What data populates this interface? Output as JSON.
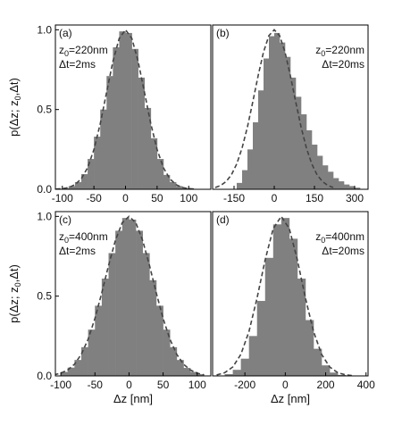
{
  "chart_data": [
    {
      "type": "histogram",
      "panel": "(a)",
      "z_label": {
        "text": "z",
        "sub": "0",
        "rest": "=220nm"
      },
      "dt_label": "Δt=2ms",
      "ylabel": {
        "before": "p(Δz; z",
        "sub": "0",
        "after": ",Δt)"
      },
      "bins": [
        -100,
        -90,
        -80,
        -70,
        -60,
        -50,
        -40,
        -30,
        -20,
        -10,
        0,
        10,
        20,
        30,
        40,
        50,
        60,
        70,
        80,
        90,
        100,
        110
      ],
      "values": [
        0.007,
        0.02,
        0.045,
        0.095,
        0.19,
        0.33,
        0.5,
        0.71,
        0.89,
        0.99,
        0.98,
        0.88,
        0.7,
        0.51,
        0.32,
        0.19,
        0.09,
        0.045,
        0.02,
        0.008,
        0.003
      ],
      "fit_x": [
        -110,
        -100,
        -90,
        -80,
        -70,
        -60,
        -50,
        -40,
        -30,
        -20,
        -10,
        0,
        10,
        20,
        30,
        40,
        50,
        60,
        70,
        80,
        90,
        100,
        110
      ],
      "fit_values": [
        0.001,
        0.004,
        0.011,
        0.029,
        0.066,
        0.135,
        0.249,
        0.411,
        0.607,
        0.801,
        0.946,
        1,
        0.946,
        0.801,
        0.607,
        0.411,
        0.249,
        0.135,
        0.066,
        0.029,
        0.011,
        0.004,
        0.001
      ],
      "color": "#808080",
      "fit_color": "#444444",
      "xlim": [
        -111,
        135
      ],
      "xticks": [
        -100,
        -50,
        0,
        50,
        100
      ],
      "ylim": [
        0,
        1.03
      ],
      "yticks": [
        {
          "value": 0,
          "label": "0.0"
        },
        {
          "value": 0.5,
          "label": "0.5"
        },
        {
          "value": 1,
          "label": "1.0"
        }
      ]
    },
    {
      "type": "histogram",
      "panel": "(b)",
      "z_label": {
        "text": "z",
        "sub": "0",
        "rest": "=220nm"
      },
      "dt_label": "Δt=20ms",
      "bins": [
        -140,
        -120,
        -100,
        -80,
        -60,
        -40,
        -20,
        0,
        20,
        40,
        60,
        80,
        100,
        120,
        140,
        160,
        180,
        200,
        220,
        240,
        260,
        280,
        300,
        320
      ],
      "values": [
        0.04,
        0.12,
        0.25,
        0.42,
        0.62,
        0.82,
        0.96,
        0.98,
        0.92,
        0.83,
        0.7,
        0.58,
        0.47,
        0.37,
        0.28,
        0.21,
        0.15,
        0.11,
        0.07,
        0.05,
        0.03,
        0.02,
        0.01
      ],
      "fit_x": [
        -220,
        -200,
        -180,
        -160,
        -140,
        -120,
        -100,
        -80,
        -60,
        -40,
        -20,
        0,
        20,
        40,
        60,
        80,
        100,
        120,
        140,
        160,
        180,
        200,
        220
      ],
      "fit_values": [
        0.011,
        0.024,
        0.048,
        0.09,
        0.159,
        0.259,
        0.391,
        0.549,
        0.713,
        0.861,
        0.963,
        1,
        0.963,
        0.861,
        0.713,
        0.549,
        0.391,
        0.259,
        0.159,
        0.09,
        0.048,
        0.024,
        0.011
      ],
      "color": "#808080",
      "fit_color": "#444444",
      "xlim": [
        -230,
        350
      ],
      "xticks": [
        -150,
        0,
        150,
        300
      ],
      "ylim": [
        0,
        1.03
      ]
    },
    {
      "type": "histogram",
      "panel": "(c)",
      "z_label": {
        "text": "z",
        "sub": "0",
        "rest": "=400nm"
      },
      "dt_label": "Δt=2ms",
      "ylabel": {
        "before": "p(Δz; z",
        "sub": "0",
        "after": ",Δt)"
      },
      "xlabel": "Δz [nm]",
      "bins": [
        -100,
        -90,
        -80,
        -70,
        -60,
        -50,
        -40,
        -30,
        -20,
        -10,
        0,
        10,
        20,
        30,
        40,
        50,
        60,
        70,
        80,
        90,
        100,
        110
      ],
      "values": [
        0.025,
        0.052,
        0.1,
        0.18,
        0.29,
        0.44,
        0.61,
        0.77,
        0.91,
        0.99,
        0.98,
        0.91,
        0.77,
        0.6,
        0.44,
        0.29,
        0.18,
        0.1,
        0.05,
        0.025,
        0.011
      ],
      "fit_x": [
        -110,
        -100,
        -90,
        -80,
        -70,
        -60,
        -50,
        -40,
        -30,
        -20,
        -10,
        0,
        10,
        20,
        30,
        40,
        50,
        60,
        70,
        80,
        90,
        100,
        110
      ],
      "fit_values": [
        0.007,
        0.017,
        0.037,
        0.073,
        0.135,
        0.23,
        0.36,
        0.52,
        0.693,
        0.849,
        0.96,
        1,
        0.96,
        0.849,
        0.693,
        0.52,
        0.36,
        0.23,
        0.135,
        0.073,
        0.037,
        0.017,
        0.007
      ],
      "color": "#808080",
      "fit_color": "#444444",
      "xlim": [
        -108,
        120
      ],
      "xticks": [
        -100,
        -50,
        0,
        50,
        100
      ],
      "ylim": [
        0,
        1.03
      ],
      "yticks": [
        {
          "value": 0,
          "label": "0.0"
        },
        {
          "value": 0.5,
          "label": "0.5"
        },
        {
          "value": 1,
          "label": "1.0"
        }
      ]
    },
    {
      "type": "histogram",
      "panel": "(d)",
      "z_label": {
        "text": "z",
        "sub": "0",
        "rest": "=400nm"
      },
      "dt_label": "Δt=20ms",
      "xlabel": "Δz [nm]",
      "bins": [
        -300,
        -260,
        -220,
        -180,
        -140,
        -100,
        -60,
        -20,
        20,
        60,
        100,
        140,
        180,
        220,
        260,
        300,
        340
      ],
      "values": [
        0.011,
        0.038,
        0.108,
        0.25,
        0.47,
        0.74,
        0.95,
        0.99,
        0.86,
        0.61,
        0.35,
        0.17,
        0.066,
        0.021,
        0.006,
        0.001
      ],
      "fit_x": [
        -340,
        -300,
        -260,
        -220,
        -180,
        -140,
        -100,
        -60,
        -20,
        20,
        60,
        100,
        140,
        180,
        220,
        260,
        300,
        340
      ],
      "fit_values": [
        0.006,
        0.02,
        0.056,
        0.135,
        0.278,
        0.487,
        0.726,
        0.923,
        1,
        0.923,
        0.726,
        0.487,
        0.278,
        0.135,
        0.056,
        0.02,
        0.006,
        0.001
      ],
      "color": "#808080",
      "fit_color": "#444444",
      "xlim": [
        -360,
        410
      ],
      "xticks": [
        -200,
        0,
        200,
        400
      ],
      "ylim": [
        0,
        1.03
      ]
    }
  ]
}
